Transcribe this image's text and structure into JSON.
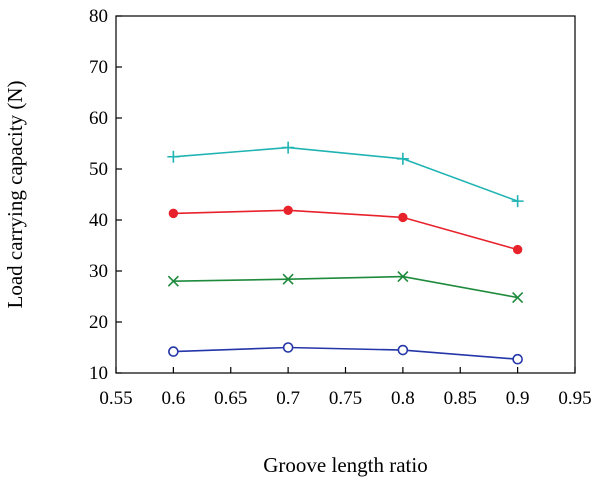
{
  "chart_data": {
    "type": "line",
    "xlabel": "Groove length ratio",
    "ylabel": "Load carrying capacity (N)",
    "xlim": [
      0.55,
      0.95
    ],
    "ylim": [
      10,
      80
    ],
    "xticks": [
      "0.55",
      "0.6",
      "0.65",
      "0.7",
      "0.75",
      "0.8",
      "0.85",
      "0.9",
      "0.95"
    ],
    "yticks": [
      "10",
      "20",
      "30",
      "40",
      "50",
      "60",
      "70",
      "80"
    ],
    "grid": false,
    "x": [
      0.6,
      0.7,
      0.8,
      0.9
    ],
    "series": [
      {
        "marker": "plus",
        "color": "#1fb3b3",
        "values": [
          52.4,
          54.2,
          52.0,
          43.7
        ]
      },
      {
        "marker": "filled-circle",
        "color": "#e8222b",
        "values": [
          41.3,
          41.9,
          40.5,
          34.2
        ]
      },
      {
        "marker": "x",
        "color": "#1e8a3c",
        "values": [
          28.0,
          28.4,
          28.9,
          24.8
        ]
      },
      {
        "marker": "open-circle",
        "color": "#2436a8",
        "values": [
          14.2,
          15.0,
          14.5,
          12.7
        ]
      }
    ]
  }
}
